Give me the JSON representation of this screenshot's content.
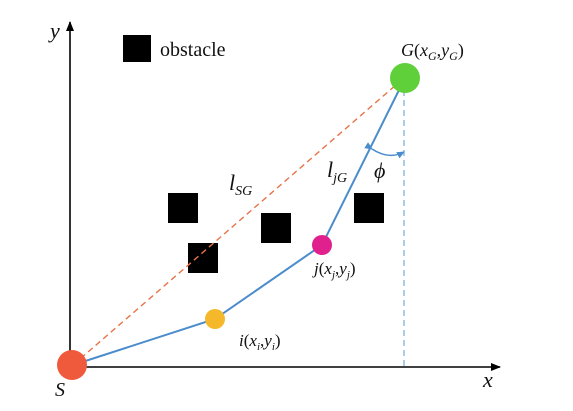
{
  "axes": {
    "x_label": "x",
    "y_label": "y"
  },
  "legend": {
    "obstacle_label": "obstacle"
  },
  "points": {
    "start": {
      "label": "S",
      "color": "#f05a3c"
    },
    "goal": {
      "label_main": "G",
      "label_open": "(",
      "x_sym": "x",
      "x_sub": "G",
      "comma": ",",
      "y_sym": "y",
      "y_sub": "G",
      "label_close": ")",
      "color": "#5fcf3a"
    },
    "i": {
      "label_main": "i",
      "label_open": "(",
      "x_sym": "x",
      "x_sub": "i",
      "comma": ",",
      "y_sym": "y",
      "y_sub": "i",
      "label_close": ")",
      "color": "#f5b82a"
    },
    "j": {
      "label_main": "j",
      "label_open": "(",
      "x_sym": "x",
      "x_sub": "j",
      "comma": ",",
      "y_sym": "y",
      "y_sub": "j",
      "label_close": ")",
      "color": "#e0208c"
    }
  },
  "segments": {
    "l_sg": {
      "symbol": "l",
      "sub": "SG"
    },
    "l_jg": {
      "symbol": "l",
      "sub": "jG"
    }
  },
  "angle": {
    "symbol": "ϕ"
  },
  "colors": {
    "path_line": "#4a8ccc",
    "dashed_sg": "#e8734a",
    "dashed_vertical": "#7fb0d8",
    "obstacle": "#000000",
    "axis": "#000000"
  }
}
